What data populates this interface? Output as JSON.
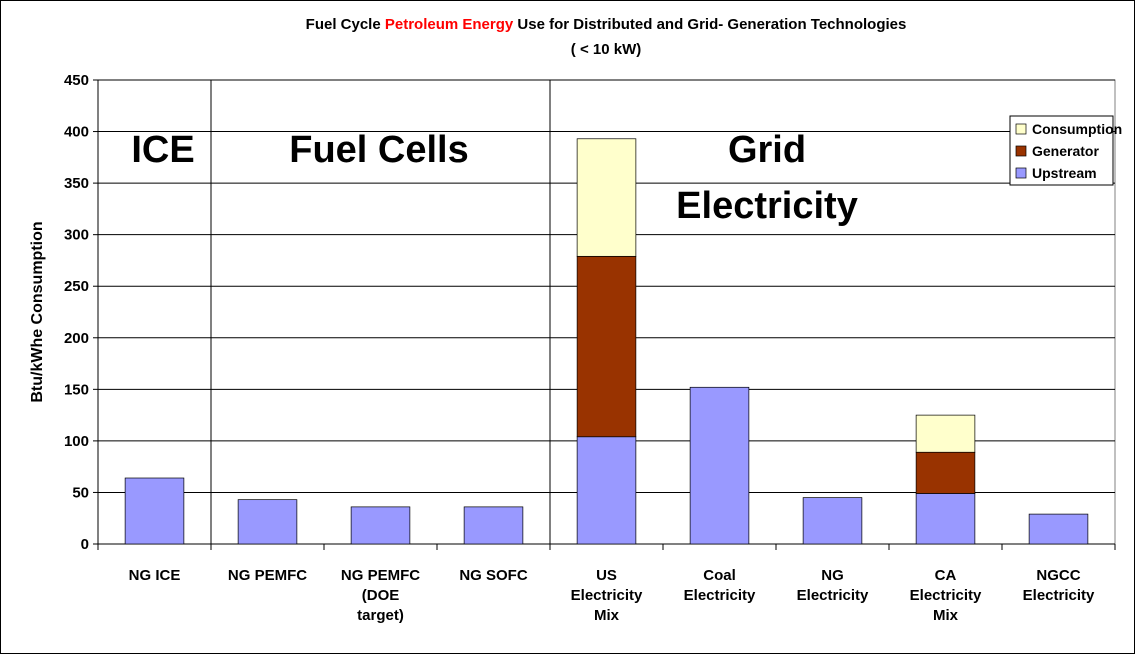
{
  "chart_data": {
    "type": "stacked_bar",
    "title": [
      "Fuel Cycle",
      "Petroleum Energy",
      "Use for Distributed and Grid- Generation Technologies"
    ],
    "title_highlight_color": "#ff0000",
    "subtitle": "( < 10 kW)",
    "y_label": "Btu/kWhe Consumption",
    "annotations": [
      "ICE",
      "Fuel Cells",
      "Grid",
      "Electricity"
    ],
    "categories": [
      [
        "NG ICE"
      ],
      [
        "NG PEMFC"
      ],
      [
        "NG PEMFC",
        "(DOE",
        "target)"
      ],
      [
        "NG SOFC"
      ],
      [
        "US",
        "Electricity",
        "Mix"
      ],
      [
        "Coal",
        "Electricity"
      ],
      [
        "NG",
        "Electricity"
      ],
      [
        "CA",
        "Electricity",
        "Mix"
      ],
      [
        "NGCC",
        "Electricity"
      ]
    ],
    "series": [
      {
        "name": "Upstream",
        "color": "#9999ff",
        "values": [
          64,
          43,
          36,
          36,
          104,
          152,
          45,
          49,
          29
        ]
      },
      {
        "name": "Generator",
        "color": "#993300",
        "values": [
          null,
          null,
          null,
          null,
          175,
          null,
          null,
          40,
          null
        ]
      },
      {
        "name": "Consumption",
        "color": "#ffffcc",
        "values": [
          null,
          null,
          null,
          null,
          114,
          null,
          null,
          36,
          null
        ]
      }
    ],
    "ylim": [
      0,
      450
    ],
    "yticks": [
      0,
      50,
      100,
      150,
      200,
      250,
      300,
      350,
      400,
      450
    ],
    "grid": true,
    "legend": "top-right"
  }
}
